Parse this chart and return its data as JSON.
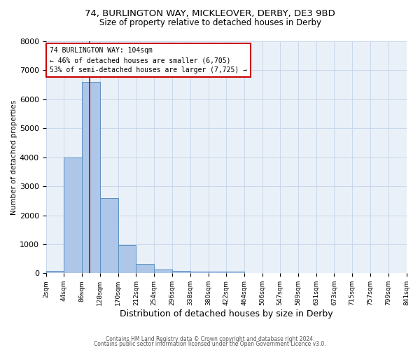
{
  "title_line1": "74, BURLINGTON WAY, MICKLEOVER, DERBY, DE3 9BD",
  "title_line2": "Size of property relative to detached houses in Derby",
  "xlabel": "Distribution of detached houses by size in Derby",
  "ylabel": "Number of detached properties",
  "bin_edges": [
    2,
    44,
    86,
    128,
    170,
    212,
    254,
    296,
    338,
    380,
    422,
    464,
    506,
    547,
    589,
    631,
    673,
    715,
    757,
    799,
    841
  ],
  "bar_heights": [
    80,
    4000,
    6600,
    2600,
    970,
    320,
    140,
    90,
    65,
    50,
    50,
    0,
    0,
    0,
    0,
    0,
    0,
    0,
    0,
    0
  ],
  "bar_color": "#aec6e8",
  "bar_edge_color": "#5a8fc0",
  "vline_x": 104,
  "vline_color": "#cc0000",
  "annotation_text": "74 BURLINGTON WAY: 104sqm\n← 46% of detached houses are smaller (6,705)\n53% of semi-detached houses are larger (7,725) →",
  "annotation_box_color": "#cc0000",
  "ylim": [
    0,
    8000
  ],
  "yticks": [
    0,
    1000,
    2000,
    3000,
    4000,
    5000,
    6000,
    7000,
    8000
  ],
  "grid_color": "#c8d8ea",
  "background_color": "#eaf0f8",
  "footnote_line1": "Contains HM Land Registry data © Crown copyright and database right 2024.",
  "footnote_line2": "Contains public sector information licensed under the Open Government Licence v3.0."
}
